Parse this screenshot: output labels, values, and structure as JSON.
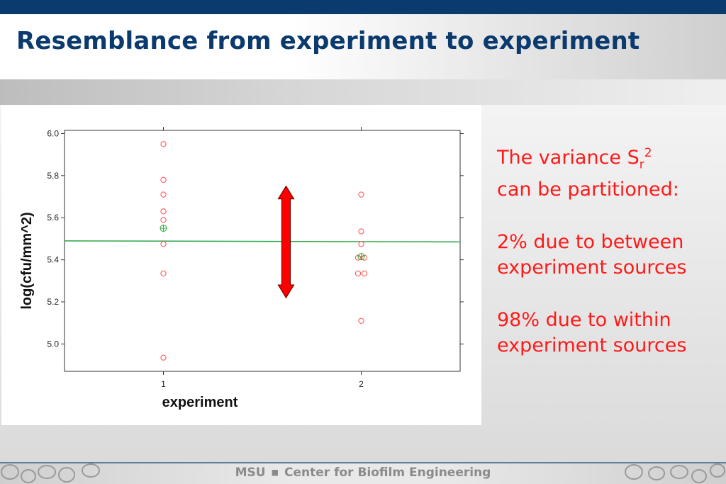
{
  "slide": {
    "title": "Resemblance from experiment to experiment",
    "text": {
      "line1_prefix": "The variance S",
      "line1_sub": "r",
      "line1_sup": "2",
      "line2": "can be partitioned:",
      "p2_line1": "2% due to between",
      "p2_line2": "experiment sources",
      "p3_line1": "98% due to within",
      "p3_line2": "experiment sources"
    },
    "footer": {
      "left": "MSU",
      "sep": "■",
      "right": "Center for Biofilm Engineering"
    }
  },
  "chart_data": {
    "type": "scatter",
    "xlabel": "experiment",
    "ylabel": "log(cfu/mm^2)",
    "x_ticks": [
      1,
      2
    ],
    "x_tick_labels": [
      "1",
      "2"
    ],
    "xlim": [
      0.5,
      2.5
    ],
    "y_ticks": [
      5.0,
      5.2,
      5.4,
      5.6,
      5.8,
      6.0
    ],
    "y_tick_labels": [
      "5.0",
      "5.2",
      "5.4",
      "5.6",
      "5.8",
      "6.0"
    ],
    "ylim": [
      4.87,
      6.015
    ],
    "grid": false,
    "colors": {
      "points": "#ff5a5a",
      "means": "#3cb043",
      "overall": "#2eaa4c",
      "arrow": "#ff0000"
    },
    "series": [
      {
        "x": [
          1,
          1,
          1,
          1,
          1,
          1,
          1,
          1
        ],
        "y": [
          5.95,
          5.78,
          5.71,
          5.63,
          5.59,
          5.475,
          5.335,
          4.935
        ]
      },
      {
        "x": [
          2,
          2,
          2,
          2,
          2,
          2,
          2,
          2
        ],
        "y": [
          5.71,
          5.535,
          5.475,
          5.41,
          5.41,
          5.335,
          5.335,
          5.11
        ]
      }
    ],
    "group_means": [
      {
        "x": 1,
        "y": 5.55
      },
      {
        "x": 2,
        "y": 5.415
      }
    ],
    "overall_line": {
      "x_from": 0.5,
      "x_to": 2.5,
      "y_from": 5.49,
      "y_to": 5.485
    },
    "arrow": {
      "x": 1.62,
      "y_from": 5.75,
      "y_to": 5.22
    }
  }
}
